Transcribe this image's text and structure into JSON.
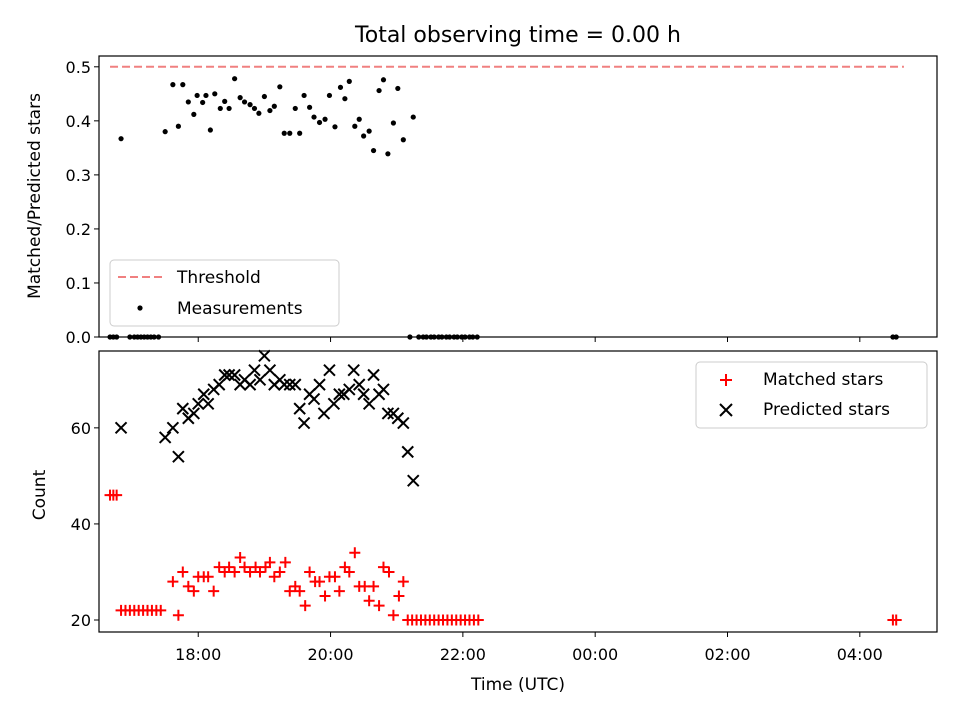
{
  "chart_data": [
    {
      "type": "scatter",
      "title": "Total observing time = 0.00 h",
      "xlabel": "",
      "ylabel": "Matched/Predicted stars",
      "xlim": [
        "16:30",
        "05:10"
      ],
      "ylim": [
        0,
        0.52
      ],
      "yticks": [
        "0.0",
        "0.1",
        "0.2",
        "0.3",
        "0.4",
        "0.5"
      ],
      "ytick_values": [
        0,
        0.1,
        0.2,
        0.3,
        0.4,
        0.5
      ],
      "grid": false,
      "legend_position": "lower-left",
      "threshold": {
        "name": "Threshold",
        "value": 0.5,
        "x_start": "16:40",
        "x_end": "04:40",
        "color": "#f08080",
        "style": "dashed"
      },
      "series": [
        {
          "name": "Measurements",
          "marker": "dot",
          "color": "#000000",
          "points": [
            [
              "16:40",
              0.0
            ],
            [
              "16:43",
              0.0
            ],
            [
              "16:46",
              0.0
            ],
            [
              "16:50",
              0.367
            ],
            [
              "16:58",
              0.0
            ],
            [
              "17:02",
              0.0
            ],
            [
              "17:05",
              0.0
            ],
            [
              "17:08",
              0.0
            ],
            [
              "17:11",
              0.0
            ],
            [
              "17:14",
              0.0
            ],
            [
              "17:17",
              0.0
            ],
            [
              "17:20",
              0.0
            ],
            [
              "17:24",
              0.0
            ],
            [
              "17:30",
              0.38
            ],
            [
              "17:37",
              0.467
            ],
            [
              "17:42",
              0.39
            ],
            [
              "17:46",
              0.467
            ],
            [
              "17:51",
              0.435
            ],
            [
              "17:56",
              0.412
            ],
            [
              "17:59",
              0.447
            ],
            [
              "18:04",
              0.434
            ],
            [
              "18:07",
              0.447
            ],
            [
              "18:11",
              0.383
            ],
            [
              "18:15",
              0.45
            ],
            [
              "18:20",
              0.423
            ],
            [
              "18:24",
              0.436
            ],
            [
              "18:28",
              0.423
            ],
            [
              "18:33",
              0.478
            ],
            [
              "18:38",
              0.443
            ],
            [
              "18:42",
              0.435
            ],
            [
              "18:47",
              0.43
            ],
            [
              "18:51",
              0.423
            ],
            [
              "18:55",
              0.414
            ],
            [
              "19:00",
              0.445
            ],
            [
              "19:05",
              0.419
            ],
            [
              "19:09",
              0.427
            ],
            [
              "19:14",
              0.463
            ],
            [
              "19:18",
              0.377
            ],
            [
              "19:23",
              0.377
            ],
            [
              "19:28",
              0.423
            ],
            [
              "19:32",
              0.377
            ],
            [
              "19:36",
              0.447
            ],
            [
              "19:41",
              0.425
            ],
            [
              "19:45",
              0.407
            ],
            [
              "19:50",
              0.397
            ],
            [
              "19:55",
              0.403
            ],
            [
              "19:59",
              0.447
            ],
            [
              "20:04",
              0.389
            ],
            [
              "20:09",
              0.462
            ],
            [
              "20:13",
              0.441
            ],
            [
              "20:17",
              0.473
            ],
            [
              "20:22",
              0.39
            ],
            [
              "20:26",
              0.403
            ],
            [
              "20:30",
              0.372
            ],
            [
              "20:35",
              0.381
            ],
            [
              "20:39",
              0.345
            ],
            [
              "20:44",
              0.456
            ],
            [
              "20:48",
              0.476
            ],
            [
              "20:52",
              0.339
            ],
            [
              "20:57",
              0.396
            ],
            [
              "21:01",
              0.46
            ],
            [
              "21:06",
              0.365
            ],
            [
              "21:12",
              0.0
            ],
            [
              "21:15",
              0.407
            ],
            [
              "21:20",
              0.0
            ],
            [
              "21:24",
              0.0
            ],
            [
              "21:27",
              0.0
            ],
            [
              "21:31",
              0.0
            ],
            [
              "21:34",
              0.0
            ],
            [
              "21:38",
              0.0
            ],
            [
              "21:41",
              0.0
            ],
            [
              "21:45",
              0.0
            ],
            [
              "21:48",
              0.0
            ],
            [
              "21:52",
              0.0
            ],
            [
              "21:55",
              0.0
            ],
            [
              "21:59",
              0.0
            ],
            [
              "22:02",
              0.0
            ],
            [
              "22:06",
              0.0
            ],
            [
              "22:09",
              0.0
            ],
            [
              "22:13",
              0.0
            ],
            [
              "04:30",
              0.0
            ],
            [
              "04:33",
              0.0
            ]
          ]
        }
      ]
    },
    {
      "type": "scatter",
      "title": "",
      "xlabel": "Time (UTC)",
      "ylabel": "Count",
      "xlim": [
        "16:30",
        "05:10"
      ],
      "ylim": [
        17.5,
        76
      ],
      "xticks": [
        "18:00",
        "20:00",
        "22:00",
        "00:00",
        "02:00",
        "04:00"
      ],
      "yticks": [
        "20",
        "40",
        "60"
      ],
      "ytick_values": [
        20,
        40,
        60
      ],
      "grid": false,
      "legend_position": "top-right",
      "series": [
        {
          "name": "Matched stars",
          "marker": "plus",
          "color": "#ff0000",
          "points": [
            [
              "16:40",
              46
            ],
            [
              "16:43",
              46
            ],
            [
              "16:46",
              46
            ],
            [
              "16:50",
              22
            ],
            [
              "16:54",
              22
            ],
            [
              "16:58",
              22
            ],
            [
              "17:02",
              22
            ],
            [
              "17:06",
              22
            ],
            [
              "17:10",
              22
            ],
            [
              "17:14",
              22
            ],
            [
              "17:18",
              22
            ],
            [
              "17:22",
              22
            ],
            [
              "17:26",
              22
            ],
            [
              "17:37",
              28
            ],
            [
              "17:42",
              21
            ],
            [
              "17:46",
              30
            ],
            [
              "17:51",
              27
            ],
            [
              "17:56",
              26
            ],
            [
              "18:00",
              29
            ],
            [
              "18:05",
              29
            ],
            [
              "18:09",
              29
            ],
            [
              "18:14",
              26
            ],
            [
              "18:19",
              31
            ],
            [
              "18:24",
              30
            ],
            [
              "18:28",
              31
            ],
            [
              "18:33",
              30
            ],
            [
              "18:38",
              33
            ],
            [
              "18:42",
              31
            ],
            [
              "18:47",
              30
            ],
            [
              "18:52",
              31
            ],
            [
              "18:56",
              30
            ],
            [
              "19:01",
              31
            ],
            [
              "19:05",
              32
            ],
            [
              "19:09",
              29
            ],
            [
              "19:14",
              30
            ],
            [
              "19:19",
              32
            ],
            [
              "19:23",
              26
            ],
            [
              "19:28",
              27
            ],
            [
              "19:32",
              26
            ],
            [
              "19:37",
              23
            ],
            [
              "19:41",
              30
            ],
            [
              "19:46",
              28
            ],
            [
              "19:50",
              28
            ],
            [
              "19:55",
              25
            ],
            [
              "19:59",
              29
            ],
            [
              "20:04",
              29
            ],
            [
              "20:08",
              26
            ],
            [
              "20:13",
              31
            ],
            [
              "20:17",
              30
            ],
            [
              "20:22",
              34
            ],
            [
              "20:26",
              27
            ],
            [
              "20:31",
              27
            ],
            [
              "20:35",
              24
            ],
            [
              "20:39",
              27
            ],
            [
              "20:44",
              23
            ],
            [
              "20:48",
              31
            ],
            [
              "20:53",
              30
            ],
            [
              "20:57",
              21
            ],
            [
              "21:02",
              25
            ],
            [
              "21:06",
              28
            ],
            [
              "21:10",
              20
            ],
            [
              "21:14",
              20
            ],
            [
              "21:18",
              20
            ],
            [
              "21:22",
              20
            ],
            [
              "21:26",
              20
            ],
            [
              "21:30",
              20
            ],
            [
              "21:34",
              20
            ],
            [
              "21:38",
              20
            ],
            [
              "21:42",
              20
            ],
            [
              "21:46",
              20
            ],
            [
              "21:50",
              20
            ],
            [
              "21:54",
              20
            ],
            [
              "21:58",
              20
            ],
            [
              "22:02",
              20
            ],
            [
              "22:06",
              20
            ],
            [
              "22:10",
              20
            ],
            [
              "22:14",
              20
            ],
            [
              "04:30",
              20
            ],
            [
              "04:33",
              20
            ]
          ]
        },
        {
          "name": "Predicted stars",
          "marker": "x",
          "color": "#000000",
          "points": [
            [
              "16:50",
              60
            ],
            [
              "17:30",
              58
            ],
            [
              "17:37",
              60
            ],
            [
              "17:42",
              54
            ],
            [
              "17:46",
              64
            ],
            [
              "17:51",
              62
            ],
            [
              "17:56",
              63
            ],
            [
              "18:00",
              65
            ],
            [
              "18:05",
              67
            ],
            [
              "18:09",
              65
            ],
            [
              "18:14",
              68
            ],
            [
              "18:19",
              69
            ],
            [
              "18:24",
              71
            ],
            [
              "18:28",
              71
            ],
            [
              "18:33",
              71
            ],
            [
              "18:38",
              69
            ],
            [
              "18:42",
              70
            ],
            [
              "18:47",
              69
            ],
            [
              "18:51",
              72
            ],
            [
              "18:56",
              70
            ],
            [
              "19:00",
              75
            ],
            [
              "19:05",
              72
            ],
            [
              "19:09",
              69
            ],
            [
              "19:14",
              70
            ],
            [
              "19:18",
              69
            ],
            [
              "19:23",
              69
            ],
            [
              "19:28",
              69
            ],
            [
              "19:32",
              64
            ],
            [
              "19:36",
              61
            ],
            [
              "19:41",
              67
            ],
            [
              "19:45",
              66
            ],
            [
              "19:50",
              69
            ],
            [
              "19:54",
              63
            ],
            [
              "19:59",
              72
            ],
            [
              "20:03",
              65
            ],
            [
              "20:08",
              67
            ],
            [
              "20:12",
              67
            ],
            [
              "20:17",
              68
            ],
            [
              "20:21",
              72
            ],
            [
              "20:26",
              69
            ],
            [
              "20:30",
              67
            ],
            [
              "20:35",
              65
            ],
            [
              "20:39",
              71
            ],
            [
              "20:44",
              67
            ],
            [
              "20:48",
              68
            ],
            [
              "20:52",
              63
            ],
            [
              "20:57",
              63
            ],
            [
              "21:01",
              62
            ],
            [
              "21:06",
              61
            ],
            [
              "21:10",
              55
            ],
            [
              "21:15",
              49
            ]
          ]
        }
      ]
    }
  ]
}
